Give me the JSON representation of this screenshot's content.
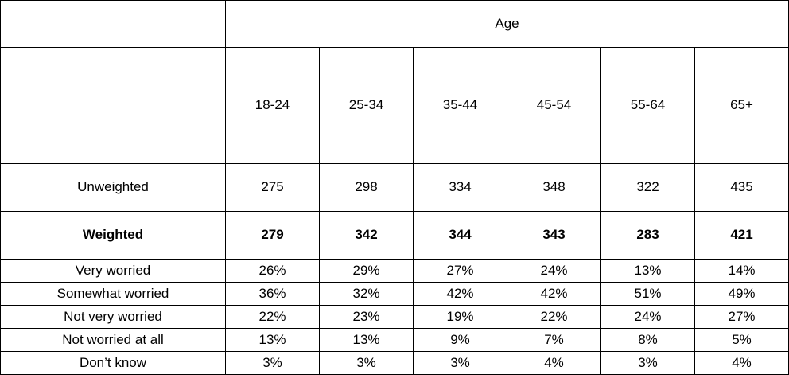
{
  "table": {
    "title": "Age",
    "columns": [
      "18-24",
      "25-34",
      "35-44",
      "45-54",
      "55-64",
      "65+"
    ],
    "rows": [
      {
        "label": "Unweighted",
        "values": [
          275,
          298,
          334,
          348,
          322,
          435
        ]
      },
      {
        "label": "Weighted",
        "values": [
          279,
          342,
          344,
          343,
          283,
          421
        ]
      },
      {
        "label": "Very worried",
        "values": [
          "26%",
          "29%",
          "27%",
          "24%",
          "13%",
          "14%"
        ]
      },
      {
        "label": "Somewhat worried",
        "values": [
          "36%",
          "32%",
          "42%",
          "42%",
          "51%",
          "49%"
        ]
      },
      {
        "label": "Not very worried",
        "values": [
          "22%",
          "23%",
          "19%",
          "22%",
          "24%",
          "27%"
        ]
      },
      {
        "label": "Not worried at all",
        "values": [
          "13%",
          "13%",
          "9%",
          "7%",
          "8%",
          "5%"
        ]
      },
      {
        "label": "Don’t know",
        "values": [
          "3%",
          "3%",
          "3%",
          "4%",
          "3%",
          "4%"
        ]
      }
    ]
  }
}
